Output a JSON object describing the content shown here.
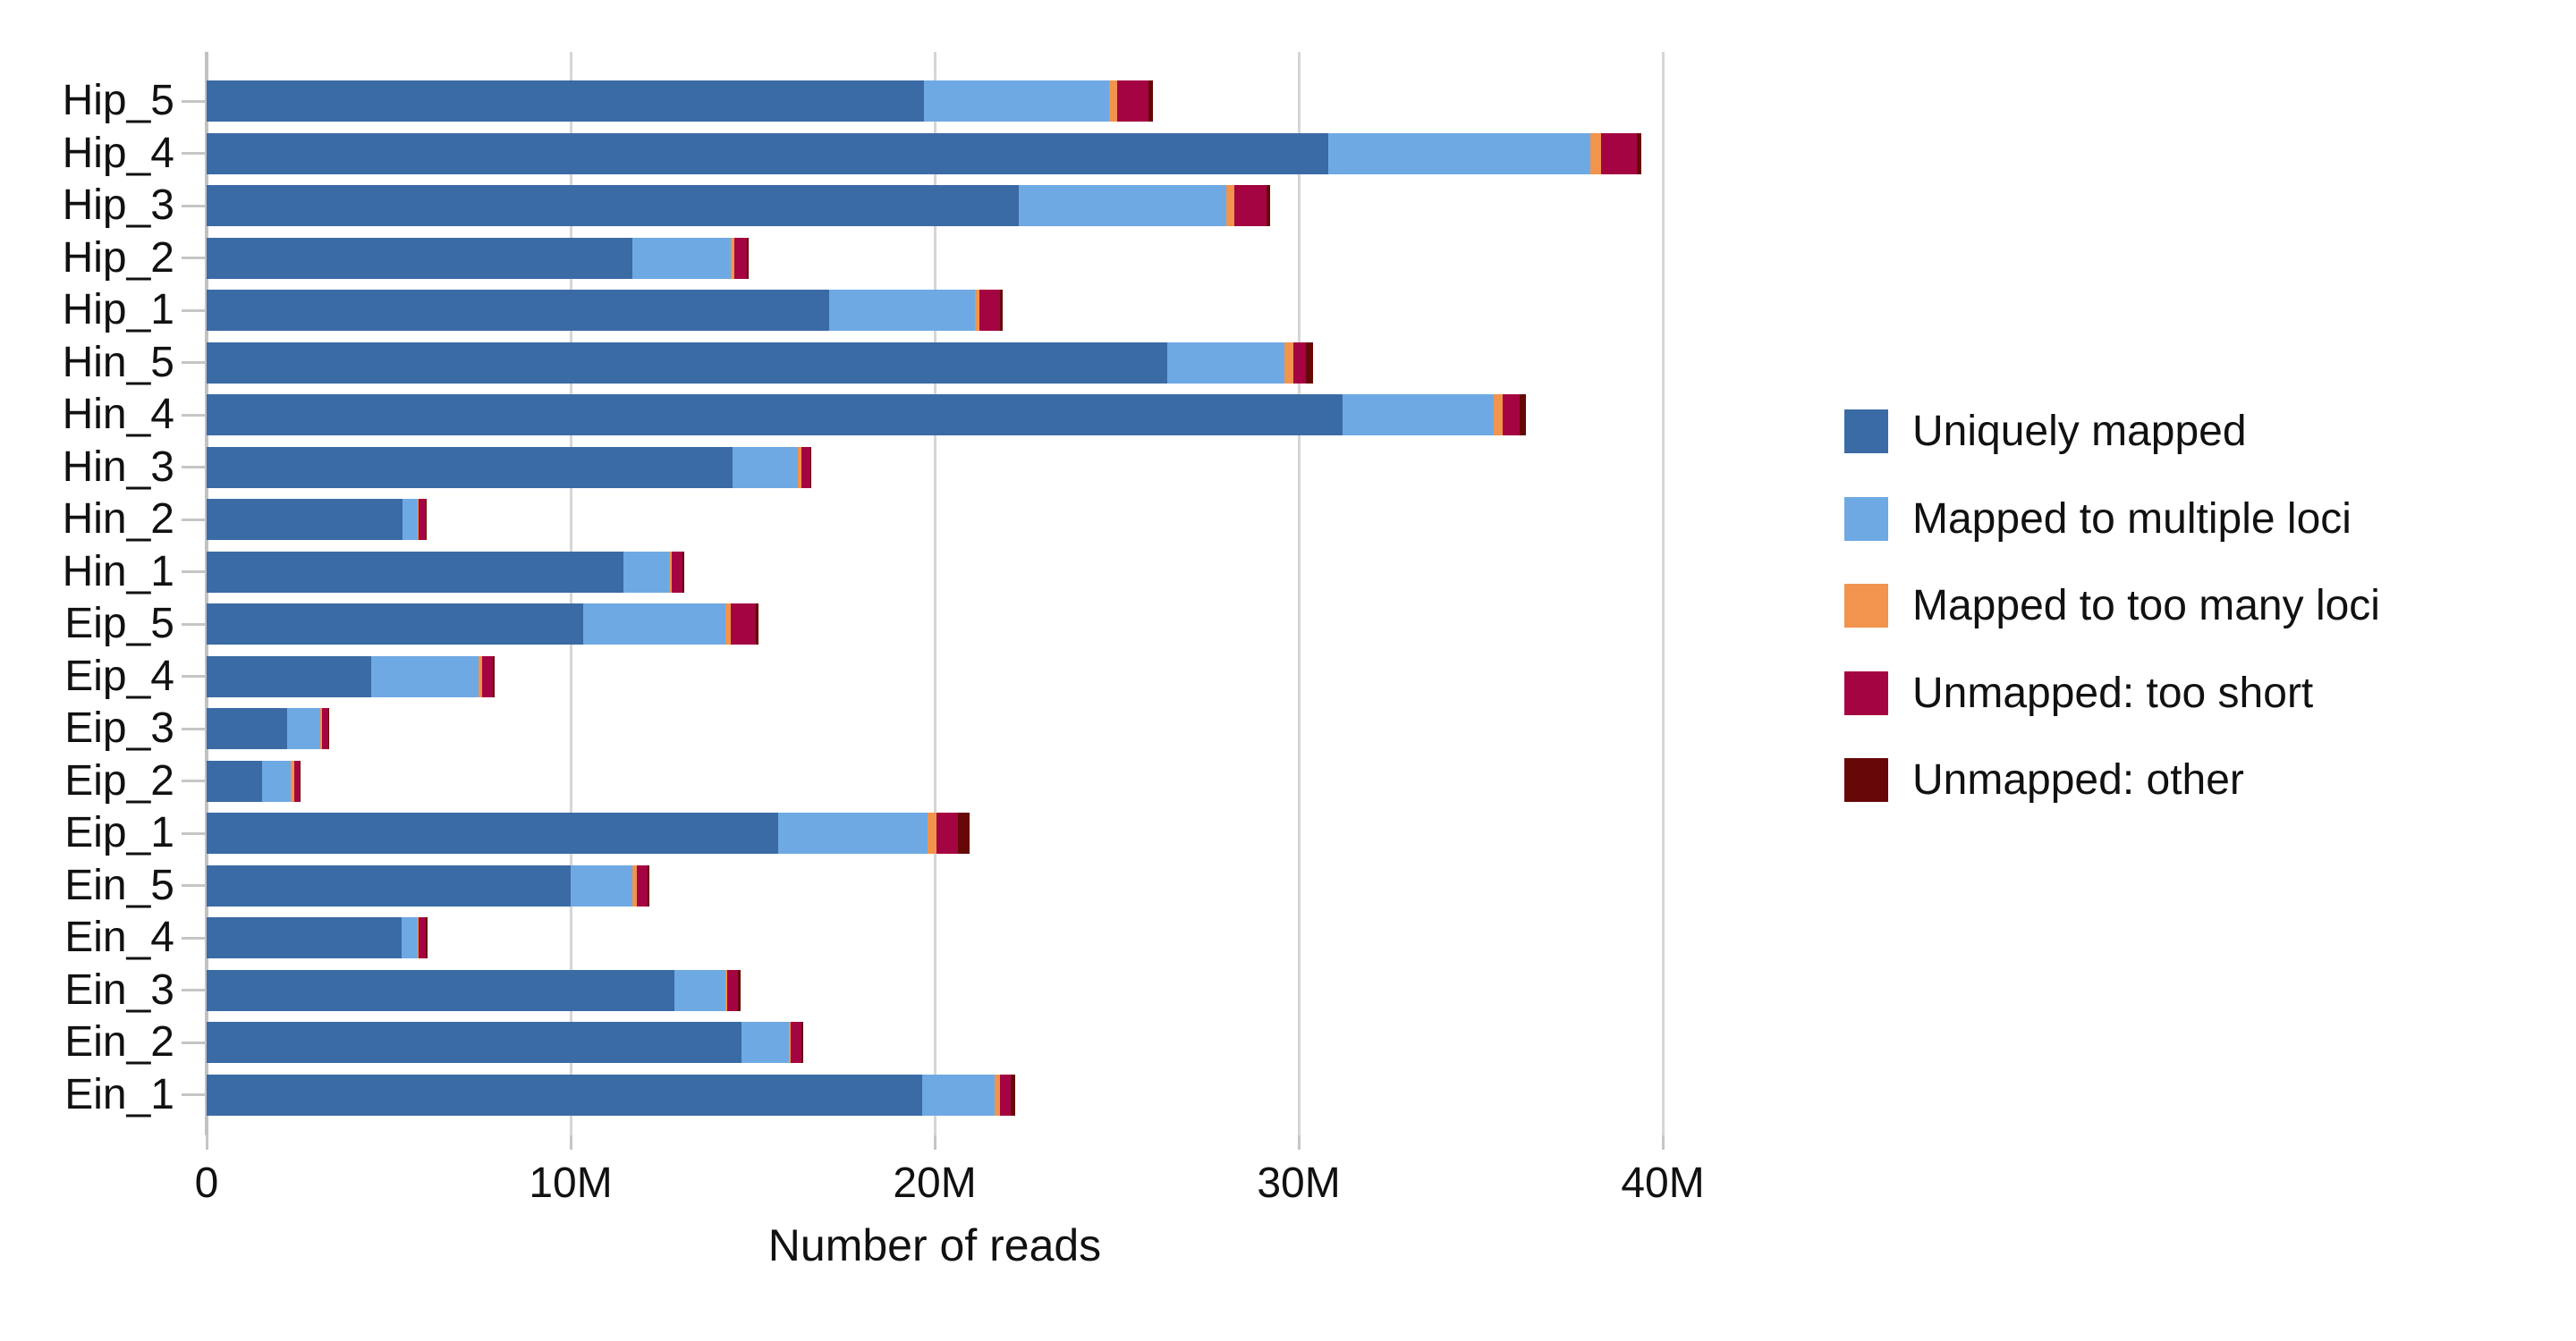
{
  "chart_data": {
    "type": "bar",
    "orientation": "horizontal",
    "stacked": true,
    "title": "",
    "xlabel": "Number of reads",
    "ylabel": "",
    "values_unit": "millions of reads",
    "grid": true,
    "legend_position": "right",
    "xlim_millions": [
      0,
      43.5
    ],
    "x_ticks": [
      {
        "value_millions": 0,
        "label": "0"
      },
      {
        "value_millions": 10,
        "label": "10M"
      },
      {
        "value_millions": 20,
        "label": "20M"
      },
      {
        "value_millions": 30,
        "label": "30M"
      },
      {
        "value_millions": 40,
        "label": "40M"
      }
    ],
    "categories": [
      "Hip_5",
      "Hip_4",
      "Hip_3",
      "Hip_2",
      "Hip_1",
      "Hin_5",
      "Hin_4",
      "Hin_3",
      "Hin_2",
      "Hin_1",
      "Eip_5",
      "Eip_4",
      "Eip_3",
      "Eip_2",
      "Eip_1",
      "Ein_5",
      "Ein_4",
      "Ein_3",
      "Ein_2",
      "Ein_1"
    ],
    "series": [
      {
        "name": "Uniquely mapped",
        "color": "#3A6BA5",
        "values_millions": [
          19.7,
          30.8,
          22.3,
          11.7,
          17.1,
          26.4,
          31.2,
          14.45,
          5.38,
          11.45,
          10.35,
          4.52,
          2.21,
          1.53,
          15.7,
          10.0,
          5.36,
          12.85,
          14.7,
          19.65
        ]
      },
      {
        "name": "Mapped to multiple loci",
        "color": "#6EA9E3",
        "values_millions": [
          5.1,
          7.2,
          5.7,
          2.7,
          4.0,
          3.2,
          4.15,
          1.8,
          0.42,
          1.28,
          3.9,
          2.95,
          0.9,
          0.79,
          4.1,
          1.7,
          0.44,
          1.4,
          1.3,
          2.0
        ]
      },
      {
        "name": "Mapped to too many loci",
        "color": "#F1944E",
        "values_millions": [
          0.22,
          0.31,
          0.24,
          0.1,
          0.13,
          0.25,
          0.25,
          0.08,
          0.03,
          0.05,
          0.16,
          0.1,
          0.06,
          0.08,
          0.25,
          0.12,
          0.03,
          0.05,
          0.05,
          0.15
        ]
      },
      {
        "name": "Unmapped: too short",
        "color": "#A40441",
        "values_millions": [
          0.85,
          0.98,
          0.88,
          0.35,
          0.56,
          0.35,
          0.46,
          0.25,
          0.18,
          0.3,
          0.68,
          0.3,
          0.16,
          0.15,
          0.6,
          0.3,
          0.2,
          0.3,
          0.28,
          0.29
        ]
      },
      {
        "name": "Unmapped: other",
        "color": "#670808",
        "values_millions": [
          0.13,
          0.12,
          0.09,
          0.05,
          0.08,
          0.19,
          0.18,
          0.04,
          0.03,
          0.05,
          0.08,
          0.04,
          0.02,
          0.02,
          0.3,
          0.04,
          0.03,
          0.06,
          0.06,
          0.11
        ]
      }
    ]
  }
}
